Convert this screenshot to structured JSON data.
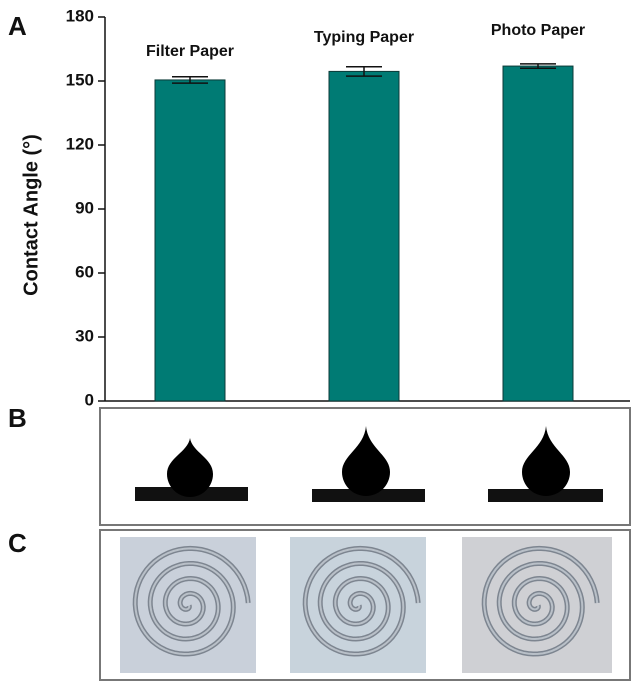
{
  "panels": [
    "A",
    "B",
    "C"
  ],
  "chart_data": {
    "type": "bar",
    "ylabel": "Contact Angle (°)",
    "categories": [
      "Filter Paper",
      "Typing Paper",
      "Photo Paper"
    ],
    "values": [
      150.5,
      154.5,
      157
    ],
    "errors": [
      1.5,
      2.2,
      1.0
    ],
    "color": "#007b74",
    "ylim": [
      0,
      180
    ],
    "yticks": [
      0,
      30,
      60,
      90,
      120,
      150,
      180
    ]
  }
}
